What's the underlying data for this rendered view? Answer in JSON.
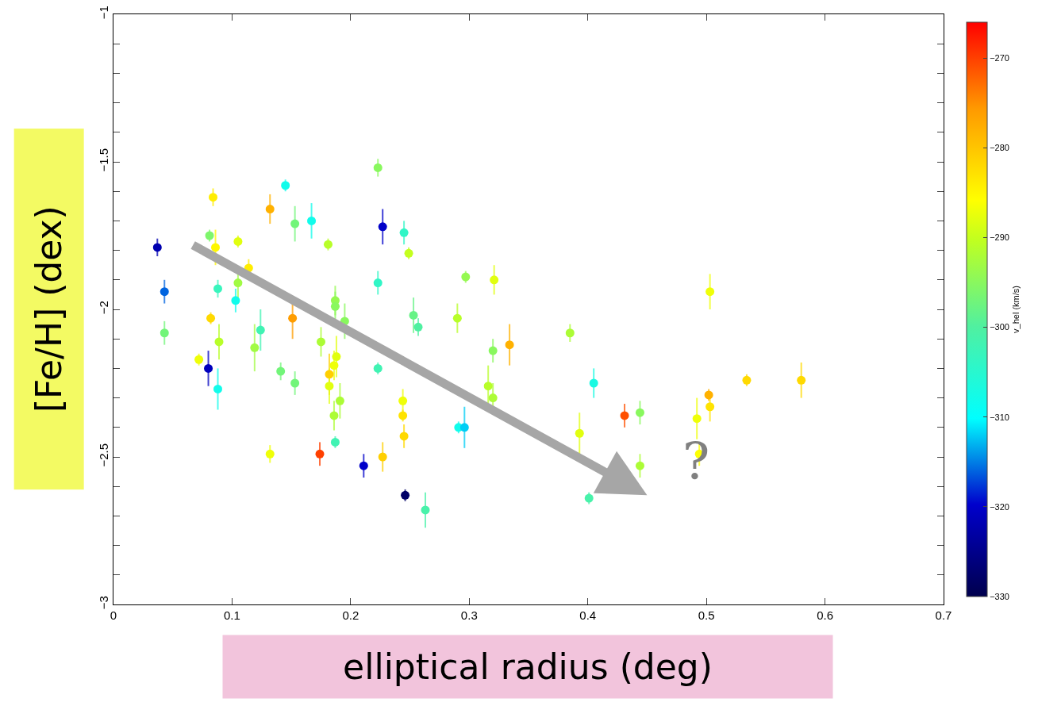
{
  "chart_data": {
    "type": "scatter",
    "xlabel": "elliptical radius (deg)",
    "ylabel": "[Fe/H] (dex)",
    "clabel": "v_hel (km/s)",
    "x": [
      0.037,
      0.043,
      0.043,
      0.084,
      0.081,
      0.086,
      0.105,
      0.114,
      0.088,
      0.105,
      0.103,
      0.082,
      0.089,
      0.072,
      0.08,
      0.088,
      0.132,
      0.145,
      0.153,
      0.167,
      0.181,
      0.151,
      0.124,
      0.119,
      0.141,
      0.153,
      0.132,
      0.174,
      0.187,
      0.175,
      0.187,
      0.187,
      0.195,
      0.188,
      0.186,
      0.182,
      0.182,
      0.191,
      0.186,
      0.223,
      0.227,
      0.245,
      0.249,
      0.223,
      0.253,
      0.257,
      0.223,
      0.211,
      0.227,
      0.246,
      0.263,
      0.244,
      0.244,
      0.245,
      0.297,
      0.321,
      0.29,
      0.32,
      0.334,
      0.385,
      0.316,
      0.32,
      0.291,
      0.296,
      0.405,
      0.431,
      0.444,
      0.393,
      0.444,
      0.401,
      0.492,
      0.494,
      0.502,
      0.503,
      0.534,
      0.58,
      0.503
    ],
    "values": [
      -1.79,
      -1.94,
      -2.08,
      -1.62,
      -1.75,
      -1.79,
      -1.77,
      -1.86,
      -1.93,
      -1.91,
      -1.97,
      -2.03,
      -2.11,
      -2.17,
      -2.2,
      -2.27,
      -1.66,
      -1.58,
      -1.71,
      -1.7,
      -1.78,
      -2.03,
      -2.07,
      -2.13,
      -2.21,
      -2.25,
      -2.49,
      -2.49,
      -2.45,
      -2.11,
      -1.97,
      -1.99,
      -2.04,
      -2.16,
      -2.19,
      -2.22,
      -2.26,
      -2.31,
      -2.36,
      -1.52,
      -1.72,
      -1.74,
      -1.81,
      -1.91,
      -2.02,
      -2.06,
      -2.2,
      -2.53,
      -2.5,
      -2.63,
      -2.68,
      -2.31,
      -2.36,
      -2.43,
      -1.89,
      -1.9,
      -2.03,
      -2.14,
      -2.12,
      -2.08,
      -2.26,
      -2.3,
      -2.4,
      -2.4,
      -2.25,
      -2.36,
      -2.35,
      -2.42,
      -2.53,
      -2.64,
      -2.37,
      -2.49,
      -2.29,
      -2.33,
      -2.24,
      -2.24,
      -1.94
    ],
    "errors": [
      0.03,
      0.04,
      0.04,
      0.03,
      0.02,
      0.06,
      0.02,
      0.03,
      0.03,
      0.05,
      0.04,
      0.02,
      0.06,
      0.02,
      0.06,
      0.07,
      0.05,
      0.02,
      0.06,
      0.06,
      0.02,
      0.07,
      0.07,
      0.08,
      0.03,
      0.04,
      0.03,
      0.04,
      0.02,
      0.05,
      0.05,
      0.05,
      0.06,
      0.07,
      0.05,
      0.07,
      0.06,
      0.06,
      0.05,
      0.03,
      0.06,
      0.04,
      0.02,
      0.04,
      0.06,
      0.03,
      0.02,
      0.04,
      0.05,
      0.02,
      0.06,
      0.04,
      0.02,
      0.04,
      0.02,
      0.05,
      0.05,
      0.04,
      0.07,
      0.03,
      0.07,
      0.05,
      0.02,
      0.07,
      0.05,
      0.04,
      0.04,
      0.07,
      0.04,
      0.02,
      0.07,
      0.04,
      0.02,
      0.05,
      0.02,
      0.06,
      0.06
    ],
    "cvalues": [
      -322,
      -316,
      -297,
      -284,
      -296,
      -285,
      -288,
      -284,
      -303,
      -293,
      -308,
      -282,
      -291,
      -287,
      -321,
      -308,
      -278,
      -308,
      -297,
      -308,
      -291,
      -276,
      -302,
      -293,
      -297,
      -297,
      -287,
      -270,
      -302,
      -292,
      -294,
      -295,
      -295,
      -288,
      -287,
      -281,
      -288,
      -292,
      -292,
      -295,
      -320,
      -304,
      -290,
      -304,
      -298,
      -300,
      -302,
      -320,
      -281,
      -328,
      -301,
      -287,
      -283,
      -282,
      -294,
      -288,
      -291,
      -295,
      -278,
      -292,
      -291,
      -292,
      -308,
      -312,
      -307,
      -271,
      -295,
      -288,
      -292,
      -301,
      -287,
      -286,
      -278,
      -283,
      -282,
      -282,
      -287
    ],
    "marker": "circle",
    "xlim": [
      0,
      0.7
    ],
    "xticks": [
      0,
      0.1,
      0.2,
      0.3,
      0.4,
      0.5,
      0.6,
      0.7
    ],
    "ylim": [
      -3,
      -1
    ],
    "yticks": [
      -3,
      {
        "value": -2.9,
        "label": null
      },
      {
        "value": -2.8,
        "label": null
      },
      {
        "value": -2.7,
        "label": null
      },
      {
        "value": -2.6,
        "label": null
      },
      -2.5,
      {
        "value": -2.4,
        "label": null
      },
      {
        "value": -2.3,
        "label": null
      },
      {
        "value": -2.2,
        "label": null
      },
      {
        "value": -2.1,
        "label": null
      },
      -2,
      {
        "value": -1.9,
        "label": null
      },
      {
        "value": -1.8,
        "label": null
      },
      {
        "value": -1.7,
        "label": null
      },
      {
        "value": -1.6,
        "label": null
      },
      -1.5,
      {
        "value": -1.4,
        "label": null
      },
      {
        "value": -1.3,
        "label": null
      },
      {
        "value": -1.2,
        "label": null
      },
      {
        "value": -1.1,
        "label": null
      },
      -1
    ],
    "clim": [
      -330,
      -266
    ],
    "cticks": [
      -330,
      -320,
      -310,
      -300,
      -290,
      -280,
      -270
    ],
    "annotations": [
      "?"
    ],
    "grid": false,
    "legend": false
  }
}
